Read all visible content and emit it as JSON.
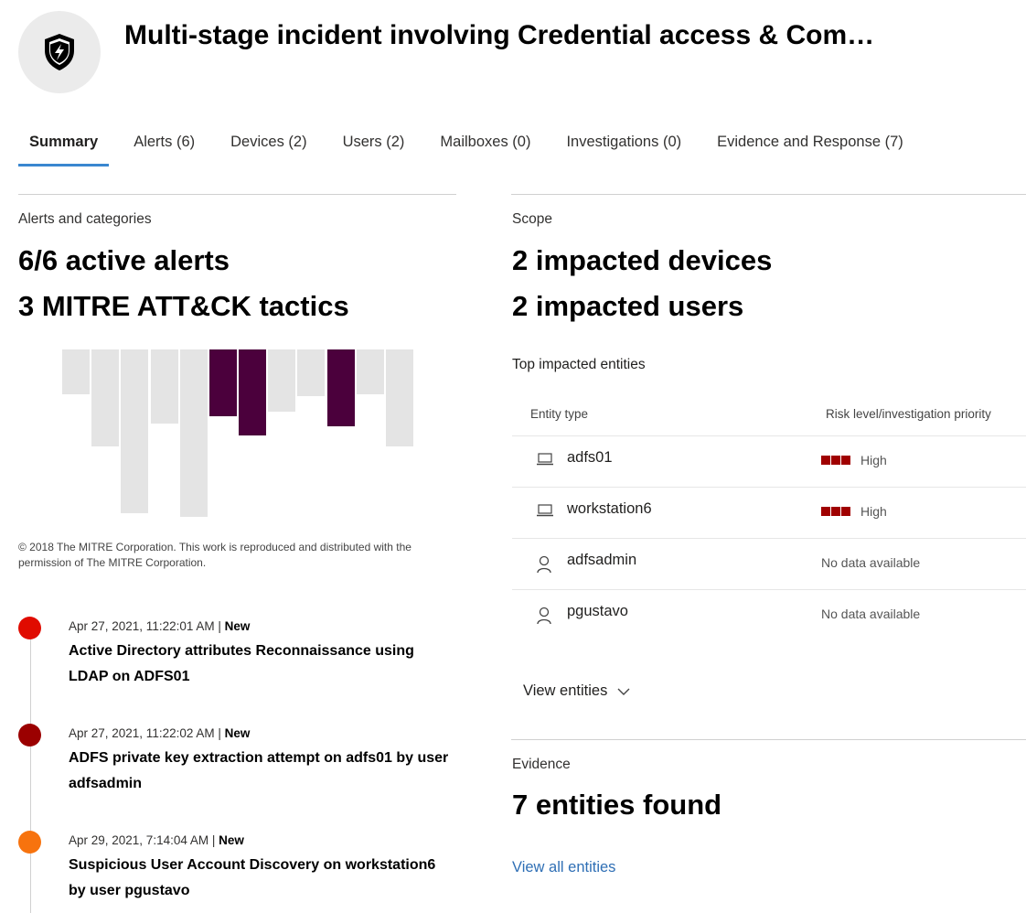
{
  "header": {
    "title": "Multi-stage incident involving Credential access & Com…",
    "icon": "shield-lightning-icon"
  },
  "tabs": [
    {
      "label": "Summary",
      "active": true
    },
    {
      "label": "Alerts (6)"
    },
    {
      "label": "Devices (2)"
    },
    {
      "label": "Users (2)"
    },
    {
      "label": "Mailboxes (0)"
    },
    {
      "label": "Investigations (0)"
    },
    {
      "label": "Evidence and Response (7)"
    }
  ],
  "alerts_section": {
    "label": "Alerts and categories",
    "active_alerts": "6/6 active alerts",
    "tactics": "3 MITRE ATT&CK tactics",
    "matrix": {
      "column_count": 12,
      "highlighted_columns": [
        6,
        7,
        10
      ],
      "highlight_color": "#4b003c",
      "base_color": "#e4e4e4"
    },
    "copyright": "© 2018 The MITRE Corporation. This work is reproduced and distributed with the permission of The MITRE Corporation."
  },
  "timeline": [
    {
      "timestamp": "Apr 27, 2021, 11:22:01 AM",
      "separator": " | ",
      "status": "New",
      "title": "Active Directory attributes Reconnaissance using LDAP on ADFS01",
      "severity_color": "#e00b00"
    },
    {
      "timestamp": "Apr 27, 2021, 11:22:02 AM",
      "separator": " | ",
      "status": "New",
      "title": "ADFS private key extraction attempt on adfs01 by user adfsadmin",
      "severity_color": "#9b0000"
    },
    {
      "timestamp": "Apr 29, 2021, 7:14:04 AM",
      "separator": " | ",
      "status": "New",
      "title": "Suspicious User Account Discovery on workstation6 by user pgustavo",
      "severity_color": "#f7730e"
    }
  ],
  "scope": {
    "label": "Scope",
    "devices": "2 impacted devices",
    "users": "2 impacted users",
    "top_label": "Top impacted entities",
    "columns": [
      "Entity type",
      "Risk level/investigation priority"
    ],
    "entities": [
      {
        "name": "adfs01",
        "icon": "laptop-icon",
        "risk": "High"
      },
      {
        "name": "workstation6",
        "icon": "laptop-icon",
        "risk": "High"
      },
      {
        "name": "adfsadmin",
        "icon": "user-icon",
        "risk": "No data available"
      },
      {
        "name": "pgustavo",
        "icon": "user-icon",
        "risk": "No data available"
      }
    ],
    "view_entities": "View entities"
  },
  "evidence": {
    "label": "Evidence",
    "count": "7 entities found",
    "link": "View all entities"
  }
}
